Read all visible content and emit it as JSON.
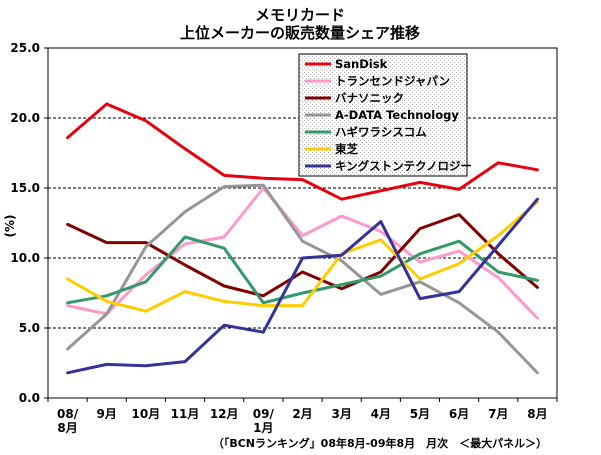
{
  "chart_data": {
    "type": "line",
    "title": "メモリカード",
    "subtitle": "上位メーカーの販売数量シェア推移",
    "ylabel": "(%)",
    "xlabel": "",
    "ylim": [
      0,
      25
    ],
    "yticks": [
      "0.0",
      "5.0",
      "10.0",
      "15.0",
      "20.0",
      "25.0"
    ],
    "grid": true,
    "legend_position": "top-right",
    "categories": [
      "08/8月",
      "9月",
      "10月",
      "11月",
      "12月",
      "09/1月",
      "2月",
      "3月",
      "4月",
      "5月",
      "6月",
      "7月",
      "8月"
    ],
    "category_lines": [
      [
        "08/",
        "8月"
      ],
      [
        "9月"
      ],
      [
        "10月"
      ],
      [
        "11月"
      ],
      [
        "12月"
      ],
      [
        "09/",
        "1月"
      ],
      [
        "2月"
      ],
      [
        "3月"
      ],
      [
        "4月"
      ],
      [
        "5月"
      ],
      [
        "6月"
      ],
      [
        "7月"
      ],
      [
        "8月"
      ]
    ],
    "series": [
      {
        "name": "SanDisk",
        "color": "#e8000e",
        "values": [
          18.6,
          21.0,
          19.8,
          17.8,
          15.9,
          15.7,
          15.6,
          14.2,
          14.8,
          15.4,
          14.9,
          16.8,
          16.3
        ]
      },
      {
        "name": "トランセンドジャパン",
        "color": "#ff99cc",
        "values": [
          6.6,
          6.0,
          8.8,
          11.0,
          11.5,
          15.0,
          11.6,
          13.0,
          11.9,
          9.7,
          10.5,
          8.6,
          5.7
        ]
      },
      {
        "name": "バナソニック",
        "color": "#800000",
        "values": [
          12.4,
          11.1,
          11.1,
          9.5,
          8.0,
          7.3,
          9.0,
          7.8,
          9.0,
          12.1,
          13.1,
          10.3,
          7.9
        ]
      },
      {
        "name": "A-DATA Technology",
        "color": "#969696",
        "values": [
          3.5,
          6.0,
          10.8,
          13.3,
          15.1,
          15.2,
          11.2,
          9.8,
          7.4,
          8.3,
          6.8,
          4.7,
          1.8
        ]
      },
      {
        "name": "ハギワラシスコム",
        "color": "#339966",
        "values": [
          6.8,
          7.3,
          8.3,
          11.5,
          10.7,
          6.8,
          7.5,
          8.1,
          8.7,
          10.3,
          11.2,
          9.0,
          8.4
        ]
      },
      {
        "name": "東芝",
        "color": "#ffcc00",
        "values": [
          8.5,
          6.9,
          6.2,
          7.6,
          6.9,
          6.6,
          6.6,
          10.3,
          11.3,
          8.5,
          9.6,
          11.6,
          14.0
        ]
      },
      {
        "name": "キングストンテクノロジー",
        "color": "#333399",
        "values": [
          1.8,
          2.4,
          2.3,
          2.6,
          5.2,
          4.7,
          10.0,
          10.2,
          12.6,
          7.1,
          7.6,
          10.9,
          14.2
        ]
      }
    ],
    "source_note": "（「BCNランキング」08年8月-09年8月　月次　＜最大パネル＞）"
  }
}
